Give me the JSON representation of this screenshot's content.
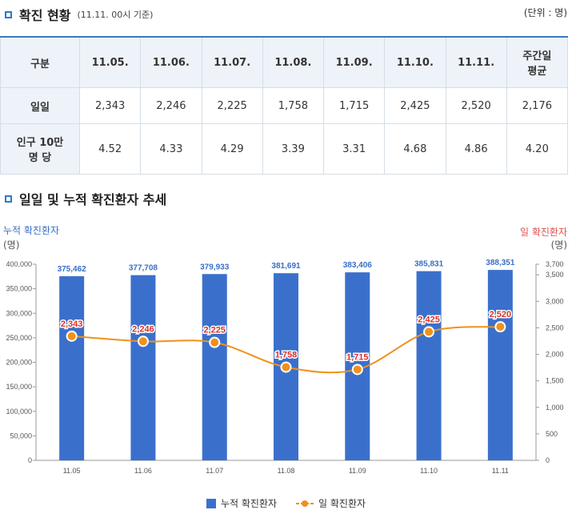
{
  "section1": {
    "title": "확진 현황",
    "subtitle": "(11.11. 00시 기준)",
    "unit": "(단위 : 명)"
  },
  "table": {
    "header": {
      "label": "구분",
      "dates": [
        "11.05.",
        "11.06.",
        "11.07.",
        "11.08.",
        "11.09.",
        "11.10.",
        "11.11."
      ],
      "avg_line1": "주간일",
      "avg_line2": "평균"
    },
    "row_daily": {
      "label": "일일",
      "values": [
        "2,343",
        "2,246",
        "2,225",
        "1,758",
        "1,715",
        "2,425",
        "2,520"
      ],
      "avg": "2,176"
    },
    "row_per100k": {
      "label_line1": "인구 10만",
      "label_line2": "명 당",
      "values": [
        "4.52",
        "4.33",
        "4.29",
        "3.39",
        "3.31",
        "4.68",
        "4.86"
      ],
      "avg": "4.20"
    }
  },
  "section2": {
    "title": "일일 및 누적 확진환자 추세"
  },
  "chart_data": {
    "type": "bar+line",
    "categories": [
      "11.05",
      "11.06",
      "11.07",
      "11.08",
      "11.09",
      "11.10",
      "11.11"
    ],
    "series": [
      {
        "name": "누적 확진환자",
        "type": "bar",
        "axis": "left",
        "values": [
          375462,
          377708,
          379933,
          381691,
          383406,
          385831,
          388351
        ],
        "labels": [
          "375,462",
          "377,708",
          "379,933",
          "381,691",
          "383,406",
          "385,831",
          "388,351"
        ]
      },
      {
        "name": "일 확진환자",
        "type": "line",
        "axis": "right",
        "values": [
          2343,
          2246,
          2225,
          1758,
          1715,
          2425,
          2520
        ],
        "labels": [
          "2,343",
          "2,246",
          "2,225",
          "1,758",
          "1,715",
          "2,425",
          "2,520"
        ]
      }
    ],
    "left_axis": {
      "label": "누적 확진환자",
      "unit": "(명)",
      "min": 0,
      "max": 400000,
      "ticks": [
        "0",
        "50,000",
        "100,000",
        "150,000",
        "200,000",
        "250,000",
        "300,000",
        "350,000",
        "400,000"
      ]
    },
    "right_axis": {
      "label": "일 확진환자",
      "unit": "(명)",
      "min": 0,
      "max": 3700,
      "ticks": [
        "0",
        "500",
        "1,000",
        "1,500",
        "2,000",
        "2,500",
        "3,000",
        "3,500",
        "3,700"
      ]
    },
    "colors": {
      "bar": "#3a70cc",
      "line": "#f0911c",
      "bar_label": "#3a6fc4",
      "line_label": "#d9332b"
    },
    "legend": [
      "누적 확진환자",
      "일 확진환자"
    ]
  }
}
